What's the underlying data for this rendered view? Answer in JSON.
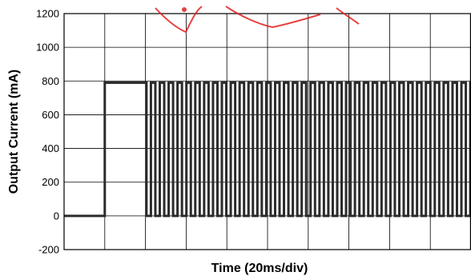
{
  "chart_data": {
    "type": "line",
    "title": "",
    "xlabel": "Time (20ms/div)",
    "ylabel": "Output Current (mA)",
    "ylim": [
      -200,
      1200
    ],
    "yticks": [
      -200,
      0,
      200,
      400,
      600,
      800,
      1000,
      1200
    ],
    "x_divisions": 10,
    "x_unit_per_division_ms": 20,
    "grid": true,
    "line_color": "#2b2b2b",
    "grid_color": "#000000",
    "series": [
      {
        "low_level_mA": 0,
        "high_level_mA": 790,
        "step_on_ms": 20,
        "continuous_on_until_ms": 40.5,
        "pulse_period_ms": 4.36,
        "pulse_duty": 0.5,
        "end_ms": 200
      }
    ]
  },
  "colors": {
    "watermark": "#e02020"
  }
}
